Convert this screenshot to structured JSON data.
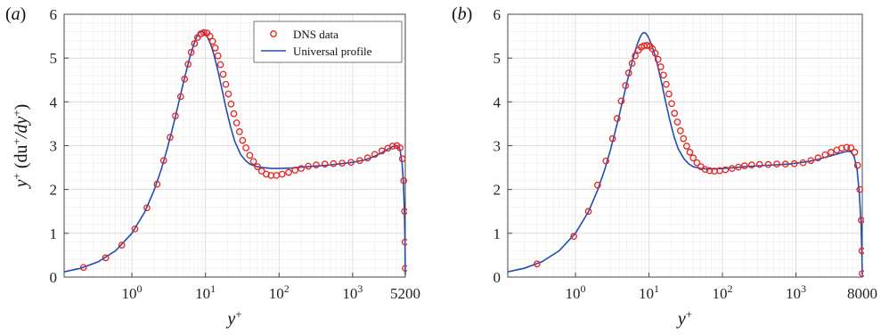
{
  "chart_data": [
    {
      "type": "scatter",
      "panel_label": "(a)",
      "xlabel": "y+",
      "ylabel": "y+ (du+/dy+)",
      "x_scale": "log",
      "xlim": [
        0.12,
        5200
      ],
      "ylim": [
        0,
        6
      ],
      "x_tick_labels": [
        "10^0",
        "10^1",
        "10^2",
        "10^3",
        "5200"
      ],
      "x_tick_values": [
        1,
        10,
        100,
        1000,
        5200
      ],
      "y_ticks": [
        0,
        1,
        2,
        3,
        4,
        5,
        6
      ],
      "grid": true,
      "legend": {
        "position": "top-right",
        "entries": [
          "DNS data",
          "Universal profile"
        ]
      },
      "series": [
        {
          "name": "DNS data",
          "marker": "open-circle",
          "color": "#e8231f",
          "points": [
            [
              0.22,
              0.22
            ],
            [
              0.44,
              0.44
            ],
            [
              0.73,
              0.73
            ],
            [
              1.1,
              1.1
            ],
            [
              1.6,
              1.58
            ],
            [
              2.2,
              2.12
            ],
            [
              2.7,
              2.66
            ],
            [
              3.3,
              3.19
            ],
            [
              3.9,
              3.68
            ],
            [
              4.6,
              4.12
            ],
            [
              5.2,
              4.52
            ],
            [
              5.8,
              4.86
            ],
            [
              6.4,
              5.13
            ],
            [
              7.1,
              5.33
            ],
            [
              7.8,
              5.47
            ],
            [
              8.6,
              5.55
            ],
            [
              9.5,
              5.58
            ],
            [
              10.5,
              5.57
            ],
            [
              11.5,
              5.5
            ],
            [
              12.5,
              5.38
            ],
            [
              13.6,
              5.23
            ],
            [
              14.8,
              5.05
            ],
            [
              16,
              4.85
            ],
            [
              17.4,
              4.63
            ],
            [
              18.9,
              4.4
            ],
            [
              20.5,
              4.18
            ],
            [
              22.3,
              3.95
            ],
            [
              24.3,
              3.73
            ],
            [
              26.5,
              3.52
            ],
            [
              29,
              3.32
            ],
            [
              32,
              3.12
            ],
            [
              35.5,
              2.95
            ],
            [
              40,
              2.78
            ],
            [
              45,
              2.64
            ],
            [
              51,
              2.52
            ],
            [
              58,
              2.42
            ],
            [
              67,
              2.35
            ],
            [
              78,
              2.32
            ],
            [
              92,
              2.32
            ],
            [
              110,
              2.35
            ],
            [
              135,
              2.39
            ],
            [
              165,
              2.44
            ],
            [
              200,
              2.48
            ],
            [
              250,
              2.53
            ],
            [
              320,
              2.56
            ],
            [
              420,
              2.58
            ],
            [
              550,
              2.59
            ],
            [
              720,
              2.6
            ],
            [
              950,
              2.62
            ],
            [
              1250,
              2.66
            ],
            [
              1600,
              2.72
            ],
            [
              2000,
              2.8
            ],
            [
              2500,
              2.88
            ],
            [
              3000,
              2.94
            ],
            [
              3500,
              2.99
            ],
            [
              4000,
              3.0
            ],
            [
              4400,
              2.95
            ],
            [
              4750,
              2.7
            ],
            [
              4950,
              2.2
            ],
            [
              5080,
              1.5
            ],
            [
              5150,
              0.8
            ],
            [
              5190,
              0.2
            ]
          ]
        },
        {
          "name": "Universal profile",
          "marker": "line",
          "color": "#1f4fb4",
          "points": [
            [
              0.12,
              0.12
            ],
            [
              0.2,
              0.2
            ],
            [
              0.35,
              0.35
            ],
            [
              0.6,
              0.6
            ],
            [
              1,
              1.0
            ],
            [
              1.5,
              1.49
            ],
            [
              2,
              1.98
            ],
            [
              2.5,
              2.45
            ],
            [
              3,
              2.91
            ],
            [
              3.5,
              3.34
            ],
            [
              4,
              3.74
            ],
            [
              4.5,
              4.1
            ],
            [
              5,
              4.43
            ],
            [
              5.5,
              4.71
            ],
            [
              6,
              4.96
            ],
            [
              6.5,
              5.16
            ],
            [
              7,
              5.33
            ],
            [
              7.5,
              5.46
            ],
            [
              8,
              5.56
            ],
            [
              8.5,
              5.61
            ],
            [
              9,
              5.62
            ],
            [
              9.5,
              5.6
            ],
            [
              10,
              5.55
            ],
            [
              11,
              5.43
            ],
            [
              12,
              5.27
            ],
            [
              13,
              5.08
            ],
            [
              14,
              4.87
            ],
            [
              15,
              4.66
            ],
            [
              17,
              4.24
            ],
            [
              19,
              3.86
            ],
            [
              22,
              3.42
            ],
            [
              25,
              3.1
            ],
            [
              30,
              2.8
            ],
            [
              35,
              2.66
            ],
            [
              40,
              2.58
            ],
            [
              50,
              2.52
            ],
            [
              60,
              2.5
            ],
            [
              80,
              2.48
            ],
            [
              100,
              2.48
            ],
            [
              150,
              2.49
            ],
            [
              200,
              2.51
            ],
            [
              300,
              2.53
            ],
            [
              500,
              2.56
            ],
            [
              800,
              2.6
            ],
            [
              1000,
              2.62
            ],
            [
              1500,
              2.68
            ],
            [
              2000,
              2.76
            ],
            [
              2500,
              2.84
            ],
            [
              3000,
              2.92
            ],
            [
              3500,
              2.98
            ],
            [
              4000,
              3.0
            ],
            [
              4400,
              2.92
            ],
            [
              4700,
              2.6
            ],
            [
              4900,
              2.15
            ],
            [
              5050,
              1.5
            ],
            [
              5150,
              0.8
            ],
            [
              5200,
              0.05
            ]
          ]
        }
      ]
    },
    {
      "type": "scatter",
      "panel_label": "(b)",
      "xlabel": "y+",
      "ylabel": "",
      "x_scale": "log",
      "xlim": [
        0.12,
        8000
      ],
      "ylim": [
        0,
        6
      ],
      "x_tick_labels": [
        "10^0",
        "10^1",
        "10^2",
        "10^3",
        "8000"
      ],
      "x_tick_values": [
        1,
        10,
        100,
        1000,
        8000
      ],
      "y_ticks": [
        0,
        1,
        2,
        3,
        4,
        5,
        6
      ],
      "grid": true,
      "series": [
        {
          "name": "DNS data",
          "marker": "open-circle",
          "color": "#e8231f",
          "points": [
            [
              0.3,
              0.3
            ],
            [
              0.95,
              0.93
            ],
            [
              1.5,
              1.5
            ],
            [
              2,
              2.1
            ],
            [
              2.6,
              2.65
            ],
            [
              3.2,
              3.16
            ],
            [
              3.7,
              3.62
            ],
            [
              4.2,
              4.02
            ],
            [
              4.8,
              4.37
            ],
            [
              5.3,
              4.66
            ],
            [
              5.9,
              4.88
            ],
            [
              6.5,
              5.05
            ],
            [
              7.2,
              5.18
            ],
            [
              7.9,
              5.25
            ],
            [
              8.6,
              5.28
            ],
            [
              9.4,
              5.29
            ],
            [
              10.3,
              5.27
            ],
            [
              11.2,
              5.21
            ],
            [
              12.2,
              5.11
            ],
            [
              13.3,
              4.97
            ],
            [
              14.5,
              4.8
            ],
            [
              15.8,
              4.61
            ],
            [
              17.2,
              4.4
            ],
            [
              18.7,
              4.18
            ],
            [
              20.4,
              3.96
            ],
            [
              22.3,
              3.74
            ],
            [
              24.4,
              3.54
            ],
            [
              26.8,
              3.34
            ],
            [
              29.5,
              3.16
            ],
            [
              32.6,
              2.99
            ],
            [
              36,
              2.85
            ],
            [
              40,
              2.72
            ],
            [
              45,
              2.61
            ],
            [
              51,
              2.52
            ],
            [
              58,
              2.46
            ],
            [
              67,
              2.43
            ],
            [
              78,
              2.42
            ],
            [
              92,
              2.43
            ],
            [
              110,
              2.45
            ],
            [
              135,
              2.48
            ],
            [
              165,
              2.51
            ],
            [
              200,
              2.54
            ],
            [
              250,
              2.56
            ],
            [
              320,
              2.57
            ],
            [
              420,
              2.57
            ],
            [
              550,
              2.58
            ],
            [
              720,
              2.58
            ],
            [
              950,
              2.59
            ],
            [
              1250,
              2.61
            ],
            [
              1600,
              2.66
            ],
            [
              2000,
              2.72
            ],
            [
              2500,
              2.79
            ],
            [
              3000,
              2.85
            ],
            [
              3600,
              2.9
            ],
            [
              4200,
              2.94
            ],
            [
              4900,
              2.96
            ],
            [
              5600,
              2.95
            ],
            [
              6300,
              2.85
            ],
            [
              6900,
              2.55
            ],
            [
              7400,
              2.0
            ],
            [
              7750,
              1.3
            ],
            [
              7920,
              0.6
            ],
            [
              7990,
              0.08
            ]
          ]
        },
        {
          "name": "Universal profile",
          "marker": "line",
          "color": "#1f4fb4",
          "points": [
            [
              0.12,
              0.12
            ],
            [
              0.2,
              0.2
            ],
            [
              0.35,
              0.35
            ],
            [
              0.6,
              0.6
            ],
            [
              1,
              1.0
            ],
            [
              1.5,
              1.49
            ],
            [
              2,
              1.98
            ],
            [
              2.5,
              2.45
            ],
            [
              3,
              2.91
            ],
            [
              3.5,
              3.34
            ],
            [
              4,
              3.74
            ],
            [
              4.5,
              4.1
            ],
            [
              5,
              4.43
            ],
            [
              5.5,
              4.71
            ],
            [
              6,
              4.96
            ],
            [
              6.5,
              5.16
            ],
            [
              7,
              5.33
            ],
            [
              7.5,
              5.46
            ],
            [
              8,
              5.55
            ],
            [
              8.5,
              5.58
            ],
            [
              9,
              5.57
            ],
            [
              9.5,
              5.52
            ],
            [
              10,
              5.45
            ],
            [
              11,
              5.28
            ],
            [
              12,
              5.08
            ],
            [
              13,
              4.86
            ],
            [
              14,
              4.63
            ],
            [
              15,
              4.41
            ],
            [
              17,
              3.98
            ],
            [
              19,
              3.62
            ],
            [
              22,
              3.2
            ],
            [
              25,
              2.93
            ],
            [
              30,
              2.7
            ],
            [
              35,
              2.58
            ],
            [
              40,
              2.52
            ],
            [
              50,
              2.48
            ],
            [
              60,
              2.47
            ],
            [
              80,
              2.47
            ],
            [
              100,
              2.48
            ],
            [
              150,
              2.5
            ],
            [
              200,
              2.52
            ],
            [
              300,
              2.54
            ],
            [
              500,
              2.56
            ],
            [
              800,
              2.58
            ],
            [
              1000,
              2.6
            ],
            [
              1500,
              2.64
            ],
            [
              2000,
              2.69
            ],
            [
              3000,
              2.77
            ],
            [
              4000,
              2.83
            ],
            [
              5000,
              2.87
            ],
            [
              5600,
              2.86
            ],
            [
              6200,
              2.75
            ],
            [
              6800,
              2.45
            ],
            [
              7300,
              1.9
            ],
            [
              7700,
              1.2
            ],
            [
              7900,
              0.5
            ],
            [
              8000,
              0.05
            ]
          ]
        }
      ]
    }
  ]
}
